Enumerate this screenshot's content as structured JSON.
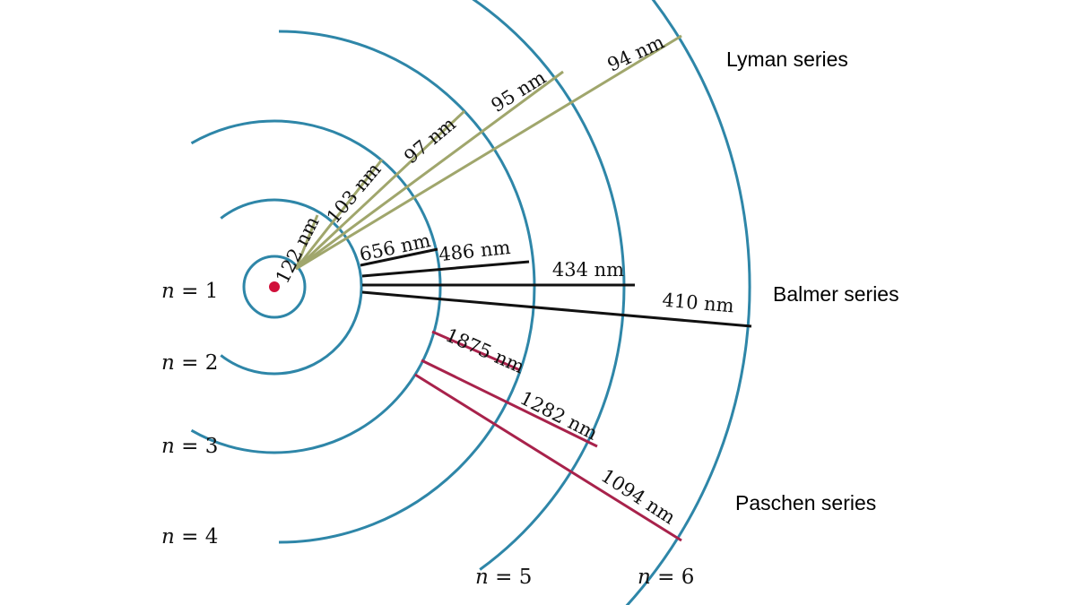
{
  "colors": {
    "orbit": "#2e86a8",
    "nucleus": "#d0103a",
    "lyman": "#a0a66c",
    "balmer": "#111111",
    "paschen": "#a8224b"
  },
  "levels": [
    {
      "n": 1,
      "label": "n = 1",
      "var": "n",
      "rest": " = 1"
    },
    {
      "n": 2,
      "label": "n = 2",
      "var": "n",
      "rest": " = 2"
    },
    {
      "n": 3,
      "label": "n = 3",
      "var": "n",
      "rest": " = 3"
    },
    {
      "n": 4,
      "label": "n = 4",
      "var": "n",
      "rest": " = 4"
    },
    {
      "n": 5,
      "label": "n = 5",
      "var": "n",
      "rest": " = 5"
    },
    {
      "n": 6,
      "label": "n = 6",
      "var": "n",
      "rest": " = 6"
    }
  ],
  "series": [
    {
      "name": "Lyman series",
      "lower_level": 1,
      "color": "#a0a66c",
      "transitions": [
        {
          "from": 2,
          "label": "122 nm"
        },
        {
          "from": 3,
          "label": "103 nm"
        },
        {
          "from": 4,
          "label": "97 nm"
        },
        {
          "from": 5,
          "label": "95 nm"
        },
        {
          "from": 6,
          "label": "94 nm"
        }
      ]
    },
    {
      "name": "Balmer series",
      "lower_level": 2,
      "color": "#111111",
      "transitions": [
        {
          "from": 3,
          "label": "656 nm"
        },
        {
          "from": 4,
          "label": "486 nm"
        },
        {
          "from": 5,
          "label": "434 nm"
        },
        {
          "from": 6,
          "label": "410 nm"
        }
      ]
    },
    {
      "name": "Paschen series",
      "lower_level": 3,
      "color": "#a8224b",
      "transitions": [
        {
          "from": 4,
          "label": "1875 nm"
        },
        {
          "from": 5,
          "label": "1282 nm"
        },
        {
          "from": 6,
          "label": "1094 nm"
        }
      ]
    }
  ]
}
